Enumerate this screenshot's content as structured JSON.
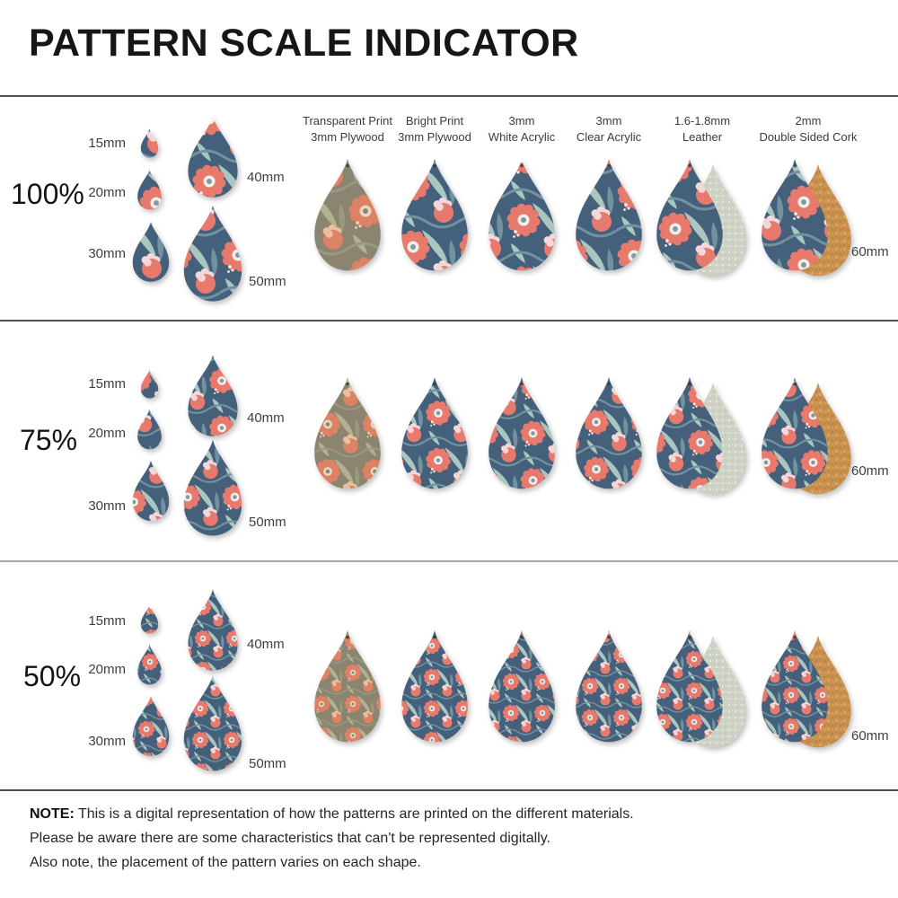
{
  "title": "PATTERN SCALE INDICATOR",
  "columns": [
    {
      "line1": "Transparent Print",
      "line2": "3mm Plywood"
    },
    {
      "line1": "Bright Print",
      "line2": "3mm Plywood"
    },
    {
      "line1": "3mm",
      "line2": "White Acrylic"
    },
    {
      "line1": "3mm",
      "line2": "Clear Acrylic"
    },
    {
      "line1": "1.6-1.8mm",
      "line2": "Leather"
    },
    {
      "line1": "2mm",
      "line2": "Double Sided Cork"
    }
  ],
  "rows": [
    {
      "scale_label": "100%",
      "scale": 1.0,
      "sizes": [
        "15mm",
        "20mm",
        "30mm",
        "40mm",
        "50mm"
      ],
      "large_size": "60mm"
    },
    {
      "scale_label": "75%",
      "scale": 0.75,
      "sizes": [
        "15mm",
        "20mm",
        "30mm",
        "40mm",
        "50mm"
      ],
      "large_size": "60mm"
    },
    {
      "scale_label": "50%",
      "scale": 0.5,
      "sizes": [
        "15mm",
        "20mm",
        "30mm",
        "40mm",
        "50mm"
      ],
      "large_size": "60mm"
    }
  ],
  "note": {
    "label": "NOTE:",
    "line1": "This is a digital representation of how the patterns are printed on the different materials.",
    "line2": "Please be aware there are some characteristics that can't be represented digitally.",
    "line3": "Also note, the placement of the pattern varies on each shape."
  },
  "colors": {
    "bright": {
      "bg": "#44607b",
      "coral": "#e8796d",
      "pink": "#f2d8da",
      "white": "#f4efe7",
      "leaf_light": "#a9c7c0",
      "leaf_mid": "#73929f",
      "center": "#7e9aa6"
    },
    "muted": {
      "bg": "#8b8471",
      "coral": "#dd8264",
      "pink": "#eabf9b",
      "white": "#e5d9bf",
      "leaf_light": "#b0b392",
      "leaf_mid": "#979a7c",
      "center": "#8d8772"
    },
    "leather": {
      "base": "#cdd2c4",
      "dot1": "#e9ece3",
      "dot2": "#b9bfae",
      "dot3": "#dfe3d8"
    },
    "cork": {
      "base": "#c8914e",
      "dot1": "#b07637",
      "dot2": "#e0ac6c",
      "dot3": "#a76f33",
      "dot4": "#e8ba7d"
    },
    "divider_dark": "#4f4f4f",
    "divider_light": "#a7a7a7",
    "hole": "#343a40"
  }
}
